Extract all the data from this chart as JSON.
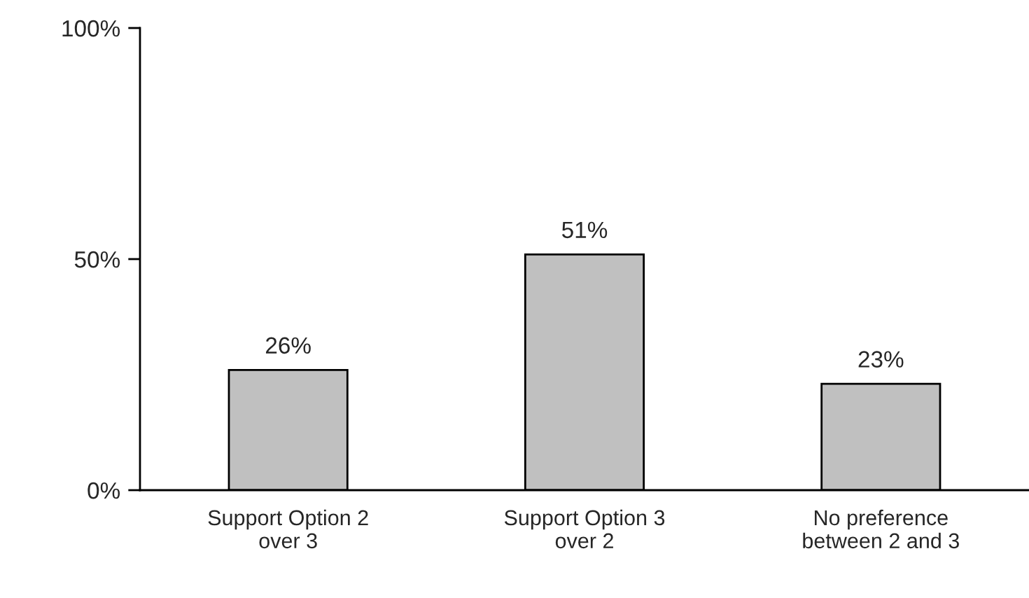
{
  "chart_data": {
    "type": "bar",
    "categories": [
      "Support Option 2\nover 3",
      "Support Option 3\nover 2",
      "No preference\nbetween 2 and 3"
    ],
    "values": [
      26,
      51,
      23
    ],
    "value_labels": [
      "26%",
      "51%",
      "23%"
    ],
    "color": "#c0c0c0",
    "ylim": [
      0,
      100
    ],
    "yticks": [
      {
        "value": 0,
        "label": "0%"
      },
      {
        "value": 50,
        "label": "50%"
      },
      {
        "value": 100,
        "label": "100%"
      }
    ],
    "grid": false,
    "legend": false
  }
}
